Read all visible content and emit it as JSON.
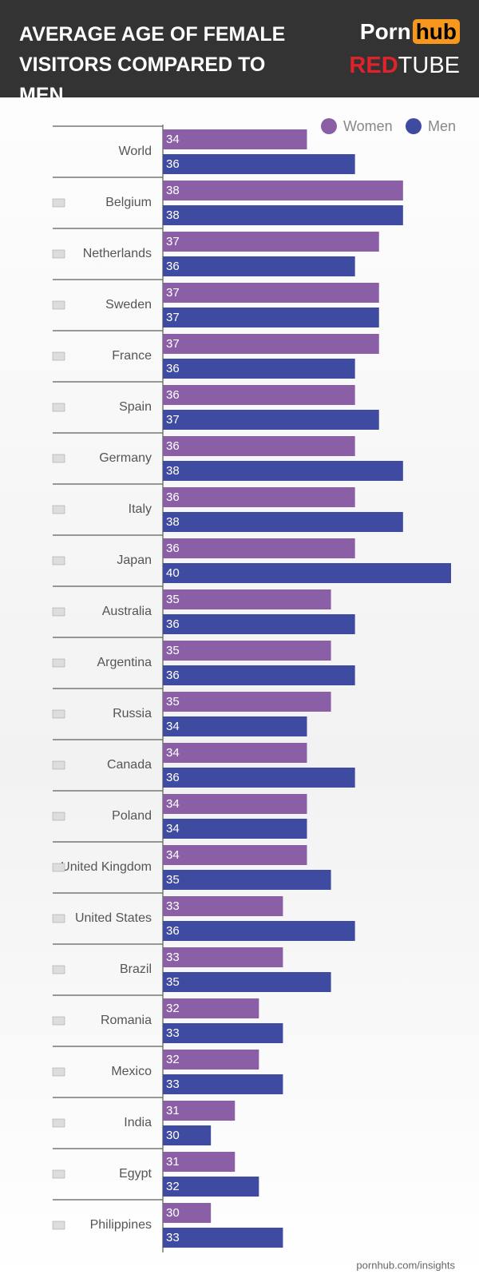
{
  "chart_data": {
    "type": "bar",
    "orientation": "horizontal",
    "title": "AVERAGE AGE OF FEMALE VISITORS COMPARED TO MEN",
    "brand": [
      "Porn",
      "hub",
      "RED",
      "TUBE"
    ],
    "source": "pornhub.com/insights",
    "categories": [
      "World",
      "Belgium",
      "Netherlands",
      "Sweden",
      "France",
      "Spain",
      "Germany",
      "Italy",
      "Japan",
      "Australia",
      "Argentina",
      "Russia",
      "Canada",
      "Poland",
      "United Kingdom",
      "United States",
      "Brazil",
      "Romania",
      "Mexico",
      "India",
      "Egypt",
      "Philippines"
    ],
    "series": [
      {
        "name": "Women",
        "color": "#8a5fa6",
        "values": [
          34,
          38,
          37,
          37,
          37,
          36,
          36,
          36,
          36,
          35,
          35,
          35,
          34,
          34,
          34,
          33,
          33,
          32,
          32,
          31,
          31,
          30
        ]
      },
      {
        "name": "Men",
        "color": "#3f4ba1",
        "values": [
          36,
          38,
          36,
          37,
          36,
          37,
          38,
          38,
          40,
          36,
          36,
          34,
          36,
          34,
          35,
          36,
          35,
          33,
          33,
          30,
          32,
          33
        ]
      }
    ],
    "xlim": [
      28,
      40
    ],
    "legend": "top-right"
  }
}
